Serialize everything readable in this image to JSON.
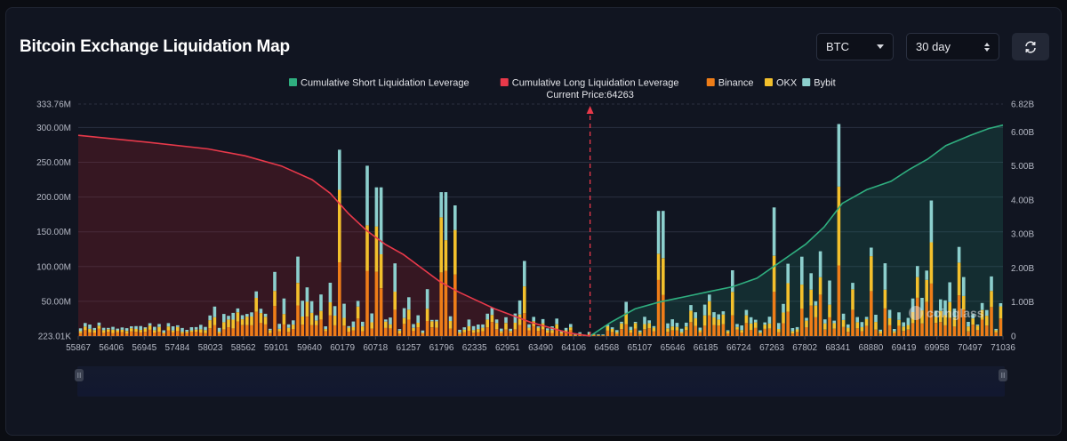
{
  "header": {
    "title": "Bitcoin Exchange Liquidation Map",
    "coin_select": "BTC",
    "period_select": "30 day",
    "refresh_icon": "refresh-icon"
  },
  "watermark": "coinglass",
  "chart_data": {
    "type": "bar",
    "legend": [
      {
        "name": "Cumulative Short Liquidation Leverage",
        "color": "#2fae7f"
      },
      {
        "name": "Cumulative Long Liquidation Leverage",
        "color": "#e8394a"
      },
      {
        "name": "Binance",
        "color": "#ee7d18"
      },
      {
        "name": "OKX",
        "color": "#f3c02c"
      },
      {
        "name": "Bybit",
        "color": "#8ccfcd"
      }
    ],
    "legend_position": "top-center",
    "current_price_label": "Current Price:64263",
    "current_price": 64263,
    "x_tick_labels": [
      "55867",
      "56406",
      "56945",
      "57484",
      "58023",
      "58562",
      "59101",
      "59640",
      "60179",
      "60718",
      "61257",
      "61796",
      "62335",
      "62951",
      "63490",
      "64106",
      "64568",
      "65107",
      "65646",
      "66185",
      "66724",
      "67263",
      "67802",
      "68341",
      "68880",
      "69419",
      "69958",
      "70497",
      "71036"
    ],
    "x_range": [
      55867,
      71036
    ],
    "y_left_ticks": [
      "223.01K",
      "50.00M",
      "100.00M",
      "150.00M",
      "200.00M",
      "250.00M",
      "300.00M",
      "333.76M"
    ],
    "y_left_range": [
      0,
      333760000
    ],
    "y_right_ticks": [
      "0",
      "1.00B",
      "2.00B",
      "3.00B",
      "4.00B",
      "5.00B",
      "6.00B",
      "6.82B"
    ],
    "y_right_range": [
      0,
      6820000000
    ],
    "grid": true,
    "long_cumulative": {
      "x": [
        55867,
        57000,
        58000,
        58600,
        59200,
        59700,
        60000,
        60300,
        60600,
        60900,
        61200,
        61500,
        61800,
        62100,
        62400,
        62700,
        63000,
        63300,
        63600,
        63900,
        64263
      ],
      "y_billion": [
        5.9,
        5.7,
        5.5,
        5.3,
        5.0,
        4.6,
        4.2,
        3.6,
        3.1,
        2.7,
        2.4,
        2.0,
        1.6,
        1.3,
        1.05,
        0.8,
        0.6,
        0.4,
        0.25,
        0.1,
        0.0
      ]
    },
    "short_cumulative": {
      "x": [
        64263,
        64600,
        65000,
        65400,
        65800,
        66200,
        66600,
        67000,
        67400,
        67800,
        68100,
        68400,
        68800,
        69200,
        69500,
        69800,
        70100,
        70500,
        70800,
        71036
      ],
      "y_billion": [
        0.0,
        0.4,
        0.8,
        1.0,
        1.15,
        1.3,
        1.45,
        1.7,
        2.2,
        2.7,
        3.2,
        3.9,
        4.3,
        4.55,
        4.9,
        5.2,
        5.6,
        5.9,
        6.1,
        6.2
      ]
    },
    "bars": {
      "count": 200,
      "peaks": [
        {
          "x": 60179,
          "total_million": 268
        },
        {
          "x": 60600,
          "total_million": 245
        },
        {
          "x": 60790,
          "total_million": 214
        },
        {
          "x": 61860,
          "total_million": 207
        },
        {
          "x": 62060,
          "total_million": 188
        },
        {
          "x": 63190,
          "total_million": 108
        },
        {
          "x": 65430,
          "total_million": 180
        },
        {
          "x": 67300,
          "total_million": 185
        },
        {
          "x": 68341,
          "total_million": 305
        },
        {
          "x": 69850,
          "total_million": 195
        }
      ]
    }
  }
}
